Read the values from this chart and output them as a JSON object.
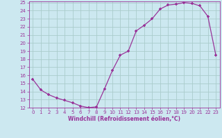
{
  "x": [
    0,
    1,
    2,
    3,
    4,
    5,
    6,
    7,
    8,
    9,
    10,
    11,
    12,
    13,
    14,
    15,
    16,
    17,
    18,
    19,
    20,
    21,
    22,
    23
  ],
  "y": [
    15.5,
    14.2,
    13.6,
    13.2,
    12.9,
    12.6,
    12.2,
    12.0,
    12.1,
    14.3,
    16.6,
    18.5,
    19.0,
    21.5,
    22.2,
    23.0,
    24.2,
    24.7,
    24.8,
    25.0,
    24.9,
    24.6,
    23.3,
    18.5
  ],
  "line_color": "#993399",
  "marker": "+",
  "bg_color": "#cce8f0",
  "grid_color": "#aacccc",
  "xlabel": "Windchill (Refroidissement éolien,°C)",
  "xlabel_color": "#993399",
  "tick_color": "#993399",
  "ylim": [
    12,
    25
  ],
  "xlim": [
    -0.5,
    23.5
  ],
  "yticks": [
    12,
    13,
    14,
    15,
    16,
    17,
    18,
    19,
    20,
    21,
    22,
    23,
    24,
    25
  ],
  "xticks": [
    0,
    1,
    2,
    3,
    4,
    5,
    6,
    7,
    8,
    9,
    10,
    11,
    12,
    13,
    14,
    15,
    16,
    17,
    18,
    19,
    20,
    21,
    22,
    23
  ]
}
